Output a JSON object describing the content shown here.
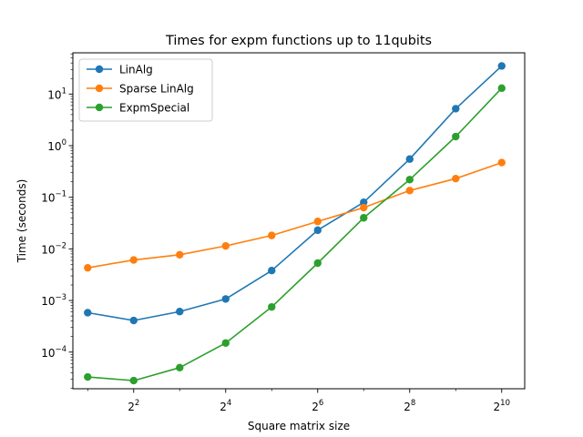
{
  "chart_data": {
    "type": "line",
    "title": "Times for expm functions up to 11qubits",
    "xlabel": "Square matrix size",
    "ylabel": "Time (seconds)",
    "xscale": "log2",
    "yscale": "log10",
    "xlim": [
      1.6,
      1448
    ],
    "ylim": [
      1.95e-05,
      63
    ],
    "grid": false,
    "legend_position": "top-left",
    "x": [
      2,
      4,
      8,
      16,
      32,
      64,
      128,
      256,
      512,
      1024
    ],
    "x_ticks": [
      {
        "value": 4,
        "base": "2",
        "exp": "2"
      },
      {
        "value": 16,
        "base": "2",
        "exp": "4"
      },
      {
        "value": 64,
        "base": "2",
        "exp": "6"
      },
      {
        "value": 256,
        "base": "2",
        "exp": "8"
      },
      {
        "value": 1024,
        "base": "2",
        "exp": "10"
      }
    ],
    "y_ticks": [
      {
        "value": 0.0001,
        "base": "10",
        "exp": "−4"
      },
      {
        "value": 0.001,
        "base": "10",
        "exp": "−3"
      },
      {
        "value": 0.01,
        "base": "10",
        "exp": "−2"
      },
      {
        "value": 0.1,
        "base": "10",
        "exp": "−1"
      },
      {
        "value": 1,
        "base": "10",
        "exp": "0"
      },
      {
        "value": 10,
        "base": "10",
        "exp": "1"
      }
    ],
    "series": [
      {
        "name": "LinAlg",
        "color": "#1f77b4",
        "values": [
          0.00058,
          0.00041,
          0.00061,
          0.00107,
          0.0038,
          0.023,
          0.08,
          0.55,
          5.2,
          35
        ]
      },
      {
        "name": "Sparse LinAlg",
        "color": "#ff7f0e",
        "values": [
          0.0043,
          0.0061,
          0.0077,
          0.0114,
          0.0182,
          0.034,
          0.063,
          0.135,
          0.23,
          0.47
        ]
      },
      {
        "name": "ExpmSpecial",
        "color": "#2ca02c",
        "values": [
          3.3e-05,
          2.8e-05,
          5e-05,
          0.00015,
          0.00075,
          0.0053,
          0.04,
          0.22,
          1.5,
          13
        ]
      }
    ]
  }
}
